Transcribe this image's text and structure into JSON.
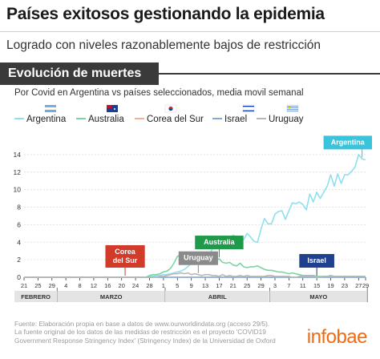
{
  "header": {
    "title": "Países exitosos gestionando la epidemia",
    "subtitle": "Logrado con niveles razonablemente bajos de restricción"
  },
  "section_title": "Evolución de muertes",
  "description": "Por Covid en Argentina vs países seleccionados, media movil semanal",
  "footer": {
    "lines": [
      "Fuente: Elaboración propia en base a datos de www.ourworldindata.org (acceso 29/5).",
      "La fuente original de los datos de las medidas de restricción es el proyecto 'COVID19",
      "Government Response Stringency Index' (Stringency Index) de la Universidad de Oxford"
    ]
  },
  "brand": "infobae",
  "colors": {
    "Argentina": "#8ee0ee",
    "Australia": "#7fd3a2",
    "Corea del Sur": "#f4b196",
    "Israel": "#7fa9d9",
    "Uruguay": "#b8b8b8",
    "month_band": "#e4e4e4"
  },
  "flags": {
    "Argentina": "argentina-flag-icon",
    "Australia": "australia-flag-icon",
    "Corea del Sur": "south-korea-flag-icon",
    "Israel": "israel-flag-icon",
    "Uruguay": "uruguay-flag-icon"
  },
  "chart_data": {
    "type": "line",
    "x": [
      "21 feb",
      "22 feb",
      "23 feb",
      "24 feb",
      "25 feb",
      "26 feb",
      "27 feb",
      "28 feb",
      "29 feb",
      "1 mar",
      "2 mar",
      "3 mar",
      "4 mar",
      "5 mar",
      "6 mar",
      "7 mar",
      "8 mar",
      "9 mar",
      "10 mar",
      "11 mar",
      "12 mar",
      "13 mar",
      "14 mar",
      "15 mar",
      "16 mar",
      "17 mar",
      "18 mar",
      "19 mar",
      "20 mar",
      "21 mar",
      "22 mar",
      "23 mar",
      "24 mar",
      "25 mar",
      "26 mar",
      "27 mar",
      "28 mar",
      "29 mar",
      "30 mar",
      "31 mar",
      "1 abr",
      "2 abr",
      "3 abr",
      "4 abr",
      "5 abr",
      "6 abr",
      "7 abr",
      "8 abr",
      "9 abr",
      "10 abr",
      "11 abr",
      "12 abr",
      "13 abr",
      "14 abr",
      "15 abr",
      "16 abr",
      "17 abr",
      "18 abr",
      "19 abr",
      "20 abr",
      "21 abr",
      "22 abr",
      "23 abr",
      "24 abr",
      "25 abr",
      "26 abr",
      "27 abr",
      "28 abr",
      "29 abr",
      "30 abr",
      "1 may",
      "2 may",
      "3 may",
      "4 may",
      "5 may",
      "6 may",
      "7 may",
      "8 may",
      "9 may",
      "10 may",
      "11 may",
      "12 may",
      "13 may",
      "14 may",
      "15 may",
      "16 may",
      "17 may",
      "18 may",
      "19 may",
      "20 may",
      "21 may",
      "22 may",
      "23 may",
      "24 may",
      "25 may",
      "26 may",
      "27 may",
      "28 may",
      "29 may"
    ],
    "xticks": {
      "labels": [
        "21",
        "25",
        "29",
        "4",
        "8",
        "12",
        "16",
        "20",
        "24",
        "28",
        "1",
        "5",
        "9",
        "13",
        "17",
        "21",
        "25",
        "29",
        "3",
        "7",
        "11",
        "15",
        "19",
        "23",
        "27",
        "29"
      ],
      "index": [
        0,
        4,
        8,
        12,
        16,
        20,
        24,
        28,
        32,
        36,
        40,
        44,
        48,
        52,
        56,
        60,
        64,
        68,
        72,
        76,
        80,
        84,
        88,
        92,
        96,
        98
      ]
    },
    "months": [
      {
        "label": "FEBRERO",
        "start": 0,
        "end": 9.5
      },
      {
        "label": "MARZO",
        "start": 9.5,
        "end": 40.5
      },
      {
        "label": "ABRIL",
        "start": 40.5,
        "end": 70.5
      },
      {
        "label": "MAYO",
        "start": 70.5,
        "end": 98.5
      }
    ],
    "ylim": [
      0,
      15
    ],
    "yticks": [
      0,
      2,
      4,
      6,
      8,
      10,
      12,
      14
    ],
    "series": [
      {
        "name": "Argentina",
        "values": [
          0,
          0,
          0,
          0,
          0,
          0,
          0,
          0,
          0,
          0,
          0,
          0,
          0,
          0,
          0,
          0,
          0,
          0,
          0,
          0,
          0,
          0,
          0,
          0,
          0,
          0,
          0,
          0,
          0,
          0,
          0,
          0,
          0,
          0,
          0,
          0,
          0.1,
          0.1,
          0.2,
          0.2,
          0.3,
          0.3,
          0.4,
          0.5,
          0.6,
          0.7,
          0.9,
          1.2,
          1.6,
          2.2,
          2.5,
          2.3,
          2.6,
          2.5,
          3.2,
          3.6,
          4.6,
          4.5,
          3.9,
          4.2,
          4.8,
          4.6,
          4.3,
          4.3,
          5.0,
          4.6,
          4.1,
          4.0,
          5.5,
          6.7,
          6.1,
          6.1,
          7.2,
          7.5,
          7.6,
          6.6,
          7.6,
          8.5,
          8.4,
          8.6,
          8.3,
          7.7,
          9.5,
          8.6,
          9.7,
          9.0,
          9.7,
          10.4,
          11.7,
          10.4,
          11.8,
          10.7,
          11.7,
          11.7,
          12.1,
          12.6,
          14.0,
          13.5,
          13.4
        ]
      },
      {
        "name": "Australia",
        "values": [
          0,
          0,
          0,
          0,
          0,
          0,
          0,
          0,
          0,
          0,
          0,
          0,
          0,
          0,
          0,
          0,
          0,
          0,
          0,
          0,
          0,
          0,
          0,
          0,
          0,
          0,
          0,
          0,
          0,
          0,
          0,
          0,
          0,
          0,
          0,
          0,
          0.2,
          0.3,
          0.3,
          0.4,
          0.6,
          0.7,
          1.0,
          1.6,
          2.4,
          2.5,
          2.5,
          2.0,
          2.4,
          1.9,
          1.9,
          2.3,
          2.4,
          2.0,
          1.6,
          1.9,
          2.1,
          1.7,
          1.6,
          1.7,
          1.4,
          1.3,
          1.6,
          1.2,
          1.1,
          1.2,
          1.2,
          1.3,
          1.1,
          0.9,
          0.8,
          0.8,
          0.7,
          0.6,
          0.6,
          0.5,
          0.4,
          0.5,
          0.4,
          0.3,
          0.2,
          0.2,
          0.2,
          0.2,
          0.1,
          0.1,
          0.1,
          0.1,
          0.2,
          0.1,
          0.1,
          0.1,
          0.1,
          0.1,
          0.1,
          0.1,
          0.1,
          0.1,
          0.1
        ]
      },
      {
        "name": "Corea del Sur",
        "values": [
          0,
          0,
          0,
          0,
          0,
          0,
          0,
          0,
          0,
          0,
          0,
          0,
          0,
          0,
          0,
          0,
          0,
          0,
          0,
          0,
          0,
          0,
          0,
          0,
          0,
          0,
          0,
          0,
          0,
          0,
          0,
          0,
          0,
          0,
          0,
          0,
          0,
          0,
          0,
          0,
          0,
          0,
          0,
          0,
          0,
          0,
          0,
          0,
          0,
          0,
          0,
          0,
          0,
          0,
          0,
          0,
          0,
          0,
          0,
          0,
          0,
          0,
          0,
          0,
          0,
          0,
          0,
          0,
          0,
          0,
          0,
          0,
          0,
          0,
          0,
          0,
          0,
          0,
          0,
          0,
          0,
          0,
          0,
          0,
          0,
          0,
          0,
          0,
          0,
          0,
          0,
          0,
          0,
          0,
          0,
          0,
          0,
          0,
          0
        ]
      },
      {
        "name": "Israel",
        "values": [
          0,
          0,
          0,
          0,
          0,
          0,
          0,
          0,
          0,
          0,
          0,
          0,
          0,
          0,
          0,
          0,
          0,
          0,
          0,
          0,
          0,
          0,
          0,
          0,
          0,
          0,
          0,
          0,
          0,
          0,
          0,
          0,
          0,
          0,
          0,
          0,
          0,
          0,
          0,
          0,
          0,
          0,
          0,
          0,
          0,
          0,
          0,
          0,
          0,
          0,
          0,
          0,
          0,
          0,
          0,
          0,
          0,
          0,
          0,
          0,
          0,
          0,
          0,
          0,
          0,
          0,
          0,
          0,
          0,
          0,
          0,
          0,
          0,
          0,
          0,
          0,
          0,
          0,
          0,
          0,
          0,
          0,
          0,
          0,
          0,
          0,
          0,
          0,
          0,
          0,
          0,
          0,
          0,
          0,
          0,
          0,
          0,
          0,
          0
        ]
      },
      {
        "name": "Uruguay",
        "values": [
          0,
          0,
          0,
          0,
          0,
          0,
          0,
          0,
          0,
          0,
          0,
          0,
          0,
          0,
          0,
          0,
          0,
          0,
          0,
          0,
          0,
          0,
          0,
          0,
          0,
          0,
          0,
          0,
          0,
          0,
          0,
          0,
          0,
          0,
          0,
          0,
          0,
          0,
          0,
          0.1,
          0.1,
          0.2,
          0.3,
          0.4,
          0.4,
          0.5,
          0.4,
          0.5,
          0.3,
          0.4,
          0.3,
          0.2,
          0.3,
          0.3,
          0.2,
          0.2,
          0.1,
          0.3,
          0.1,
          0.2,
          0.1,
          0.1,
          0.2,
          0.1,
          0.2,
          0.1,
          0.1,
          0.1,
          0.1,
          0.1,
          0.2,
          0.2,
          0.1,
          0.1,
          0.1,
          0.1,
          0.1,
          0.0,
          0.0,
          0.1,
          0.1,
          0.1,
          0.1,
          0.1,
          0.0,
          0.0,
          0.1,
          0.1,
          0.1,
          0.1,
          0.1,
          0.1,
          0.1,
          0.1,
          0.1,
          0.1,
          0.1,
          0.1,
          0.1
        ]
      }
    ],
    "annotations": [
      {
        "series": "Argentina",
        "label": "Argentina",
        "at": 97
      },
      {
        "series": "Corea del Sur",
        "label": "Corea\ndel Sur",
        "at": 29
      },
      {
        "series": "Israel",
        "label": "Israel",
        "at": 84
      },
      {
        "series": "Australia",
        "label": "Australia",
        "at": 56
      },
      {
        "series": "Uruguay",
        "label": "Uruguay",
        "at": 50
      }
    ],
    "grid": true,
    "legend_position": "top"
  }
}
